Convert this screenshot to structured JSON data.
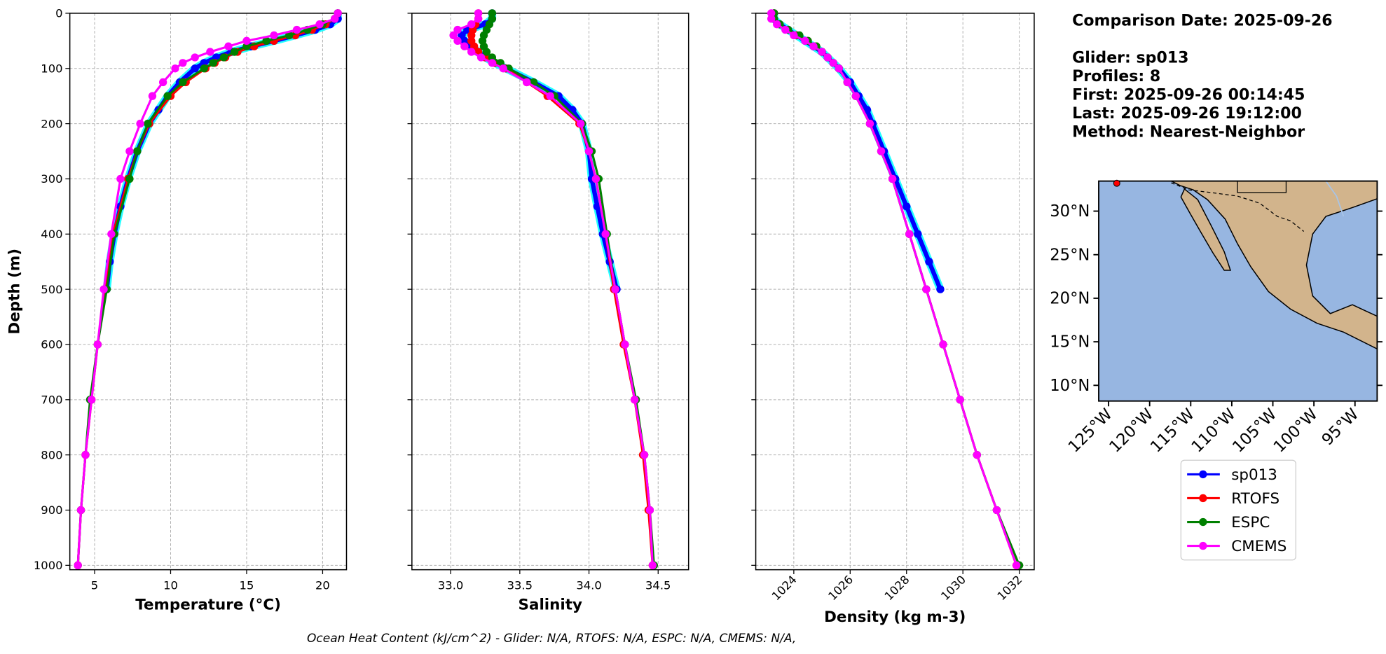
{
  "chart_data": [
    {
      "type": "line",
      "xlabel": "Temperature (°C)",
      "ylabel": "Depth (m)",
      "xlim": [
        3.37,
        21.57
      ],
      "xticks": [
        5,
        10,
        15,
        20
      ],
      "ylim": [
        1008,
        0
      ],
      "yticks": [
        0,
        100,
        200,
        300,
        400,
        500,
        600,
        700,
        800,
        900,
        1000
      ],
      "ytick_labels": true,
      "grid": true,
      "series": [
        {
          "name": "sp013",
          "color": "#0000ff",
          "halo": "#00ffff",
          "y": [
            0,
            10,
            20,
            30,
            40,
            50,
            60,
            70,
            80,
            90,
            100,
            125,
            150,
            175,
            200,
            250,
            300,
            350,
            400,
            450,
            500
          ],
          "values": [
            21,
            21,
            20.5,
            19.5,
            18.2,
            16.8,
            15.3,
            14,
            13,
            12.2,
            11.6,
            10.6,
            9.8,
            9.2,
            8.6,
            7.8,
            7.2,
            6.7,
            6.3,
            6,
            5.8
          ]
        },
        {
          "name": "RTOFS",
          "color": "#ff0000",
          "y": [
            0,
            10,
            20,
            30,
            40,
            50,
            60,
            70,
            80,
            90,
            100,
            125,
            150,
            200,
            250,
            300,
            400,
            500,
            600,
            700,
            800,
            900,
            1000
          ],
          "values": [
            21,
            20.8,
            20.2,
            19.3,
            18.2,
            16.8,
            15.5,
            14.4,
            13.6,
            12.9,
            12.3,
            11,
            10,
            8.6,
            7.8,
            7.2,
            6.2,
            5.7,
            5.2,
            4.8,
            4.4,
            4.1,
            3.9
          ]
        },
        {
          "name": "ESPC",
          "color": "#008000",
          "y": [
            0,
            10,
            20,
            30,
            40,
            50,
            60,
            70,
            80,
            90,
            100,
            125,
            150,
            200,
            250,
            300,
            400,
            500,
            600,
            700,
            800,
            900,
            1000
          ],
          "values": [
            21,
            20.8,
            20,
            19,
            17.8,
            16.3,
            15,
            14.2,
            13.5,
            12.8,
            12.2,
            10.8,
            9.8,
            8.5,
            7.8,
            7.3,
            6.3,
            5.8,
            5.2,
            4.7,
            4.4,
            4.1,
            3.9
          ]
        },
        {
          "name": "CMEMS",
          "color": "#ff00ff",
          "y": [
            0,
            10,
            20,
            30,
            40,
            50,
            60,
            70,
            80,
            90,
            100,
            125,
            150,
            200,
            250,
            300,
            400,
            500,
            600,
            700,
            800,
            900,
            1000
          ],
          "values": [
            21,
            20.8,
            19.8,
            18.3,
            16.8,
            15,
            13.8,
            12.6,
            11.6,
            10.8,
            10.3,
            9.5,
            8.8,
            8,
            7.3,
            6.7,
            6.1,
            5.6,
            5.2,
            4.8,
            4.4,
            4.1,
            3.9
          ]
        }
      ]
    },
    {
      "type": "line",
      "xlabel": "Salinity",
      "xlim": [
        32.72,
        34.72
      ],
      "xticks": [
        {
          "value": 33,
          "label": "33.0"
        },
        33.5,
        {
          "value": 34,
          "label": "34.0"
        },
        34.5
      ],
      "ylim": [
        1008,
        0
      ],
      "yticks": [
        0,
        100,
        200,
        300,
        400,
        500,
        600,
        700,
        800,
        900,
        1000
      ],
      "ytick_labels": false,
      "grid": true,
      "series": [
        {
          "name": "sp013",
          "color": "#0000ff",
          "halo": "#00ffff",
          "y": [
            0,
            10,
            20,
            30,
            40,
            50,
            60,
            70,
            80,
            90,
            100,
            125,
            150,
            175,
            200,
            250,
            300,
            350,
            400,
            450,
            500
          ],
          "values": [
            33.3,
            33.3,
            33.25,
            33.12,
            33.08,
            33.1,
            33.15,
            33.2,
            33.25,
            33.32,
            33.4,
            33.6,
            33.78,
            33.88,
            33.95,
            34,
            34.02,
            34.06,
            34.1,
            34.15,
            34.2
          ]
        },
        {
          "name": "RTOFS",
          "color": "#ff0000",
          "y": [
            0,
            10,
            20,
            30,
            40,
            50,
            60,
            70,
            80,
            90,
            100,
            125,
            150,
            200,
            250,
            300,
            400,
            500,
            600,
            700,
            800,
            900,
            1000
          ],
          "values": [
            33.2,
            33.2,
            33.18,
            33.16,
            33.15,
            33.15,
            33.17,
            33.2,
            33.25,
            33.32,
            33.4,
            33.55,
            33.7,
            33.93,
            34,
            34.05,
            34.12,
            34.18,
            34.25,
            34.33,
            34.39,
            34.43,
            34.46
          ]
        },
        {
          "name": "ESPC",
          "color": "#008000",
          "y": [
            0,
            10,
            20,
            30,
            40,
            50,
            60,
            70,
            80,
            90,
            100,
            125,
            150,
            200,
            250,
            300,
            400,
            500,
            600,
            700,
            800,
            900,
            1000
          ],
          "values": [
            33.3,
            33.3,
            33.28,
            33.26,
            33.24,
            33.23,
            33.24,
            33.26,
            33.3,
            33.36,
            33.42,
            33.6,
            33.75,
            33.95,
            34.02,
            34.07,
            34.13,
            34.19,
            34.26,
            34.34,
            34.4,
            34.44,
            34.47
          ]
        },
        {
          "name": "CMEMS",
          "color": "#ff00ff",
          "y": [
            0,
            10,
            20,
            30,
            40,
            50,
            60,
            70,
            80,
            90,
            100,
            125,
            150,
            200,
            250,
            300,
            400,
            500,
            600,
            700,
            800,
            900,
            1000
          ],
          "values": [
            33.2,
            33.2,
            33.15,
            33.05,
            33.02,
            33.05,
            33.1,
            33.15,
            33.22,
            33.3,
            33.38,
            33.55,
            33.72,
            33.94,
            34,
            34.05,
            34.12,
            34.19,
            34.26,
            34.33,
            34.4,
            34.44,
            34.46
          ]
        }
      ]
    },
    {
      "type": "line",
      "xlabel": "Density (kg m-3)",
      "xlim": [
        1022.65,
        1032.53
      ],
      "xticks": [
        1024,
        1026,
        1028,
        1030,
        1032
      ],
      "xtick_rotation": 45,
      "ylim": [
        1008,
        0
      ],
      "yticks": [
        0,
        100,
        200,
        300,
        400,
        500,
        600,
        700,
        800,
        900,
        1000
      ],
      "ytick_labels": false,
      "grid": true,
      "series": [
        {
          "name": "sp013",
          "color": "#0000ff",
          "halo": "#00ffff",
          "y": [
            0,
            10,
            20,
            30,
            40,
            50,
            60,
            70,
            80,
            90,
            100,
            125,
            150,
            175,
            200,
            250,
            300,
            350,
            400,
            450,
            500
          ],
          "values": [
            1023.3,
            1023.3,
            1023.5,
            1023.8,
            1024.1,
            1024.4,
            1024.7,
            1025,
            1025.2,
            1025.4,
            1025.6,
            1026,
            1026.3,
            1026.6,
            1026.8,
            1027.2,
            1027.6,
            1028,
            1028.4,
            1028.8,
            1029.2
          ]
        },
        {
          "name": "RTOFS",
          "color": "#ff0000",
          "y": [
            0,
            10,
            20,
            30,
            40,
            50,
            60,
            70,
            80,
            90,
            100,
            125,
            150,
            200,
            250,
            300,
            400,
            500,
            600,
            700,
            800,
            900,
            1000
          ],
          "values": [
            1023.3,
            1023.3,
            1023.5,
            1023.8,
            1024.1,
            1024.5,
            1024.8,
            1025,
            1025.2,
            1025.4,
            1025.6,
            1025.9,
            1026.2,
            1026.7,
            1027.1,
            1027.5,
            1028.1,
            1028.7,
            1029.3,
            1029.9,
            1030.5,
            1031.2,
            1031.9
          ]
        },
        {
          "name": "ESPC",
          "color": "#008000",
          "y": [
            0,
            10,
            20,
            30,
            40,
            50,
            60,
            70,
            80,
            90,
            100,
            125,
            150,
            200,
            250,
            300,
            400,
            500,
            600,
            700,
            800,
            900,
            1000
          ],
          "values": [
            1023.3,
            1023.3,
            1023.5,
            1023.8,
            1024.2,
            1024.5,
            1024.8,
            1025,
            1025.2,
            1025.4,
            1025.6,
            1025.9,
            1026.2,
            1026.7,
            1027.1,
            1027.5,
            1028.1,
            1028.7,
            1029.3,
            1029.9,
            1030.5,
            1031.2,
            1032
          ]
        },
        {
          "name": "CMEMS",
          "color": "#ff00ff",
          "y": [
            0,
            10,
            20,
            30,
            40,
            50,
            60,
            70,
            80,
            90,
            100,
            125,
            150,
            200,
            250,
            300,
            400,
            500,
            600,
            700,
            800,
            900,
            1000
          ],
          "values": [
            1023.2,
            1023.2,
            1023.4,
            1023.7,
            1024,
            1024.4,
            1024.7,
            1025,
            1025.2,
            1025.4,
            1025.6,
            1025.9,
            1026.2,
            1026.7,
            1027.1,
            1027.5,
            1028.1,
            1028.7,
            1029.3,
            1029.9,
            1030.5,
            1031.2,
            1031.9
          ]
        }
      ]
    }
  ],
  "info": [
    "Comparison Date: 2025-09-26",
    "Glider: sp013",
    "Profiles: 8",
    "First: 2025-09-26 00:14:45",
    "Last: 2025-09-26 19:12:00",
    "Method: Nearest-Neighbor"
  ],
  "map": {
    "lonlim": [
      -126.2,
      -92.3
    ],
    "latlim": [
      8.2,
      33.45
    ],
    "lonticks": [
      {
        "value": -125,
        "label": "125°W"
      },
      {
        "value": -120,
        "label": "120°W"
      },
      {
        "value": -115,
        "label": "115°W"
      },
      {
        "value": -110,
        "label": "110°W"
      },
      {
        "value": -105,
        "label": "105°W"
      },
      {
        "value": -100,
        "label": "100°W"
      },
      {
        "value": -95,
        "label": "95°W"
      }
    ],
    "latticks": [
      {
        "value": 30,
        "label": "30°N"
      },
      {
        "value": 25,
        "label": "25°N"
      },
      {
        "value": 20,
        "label": "20°N"
      },
      {
        "value": 15,
        "label": "15°N"
      },
      {
        "value": 10,
        "label": "10°N"
      }
    ],
    "marker": {
      "lon": -124,
      "lat": 33.2,
      "color": "#ff0000"
    }
  },
  "footer": "Ocean Heat Content (kJ/cm^2) - Glider: N/A,  RTOFS: N/A,  ESPC: N/A,  CMEMS: N/A,"
}
